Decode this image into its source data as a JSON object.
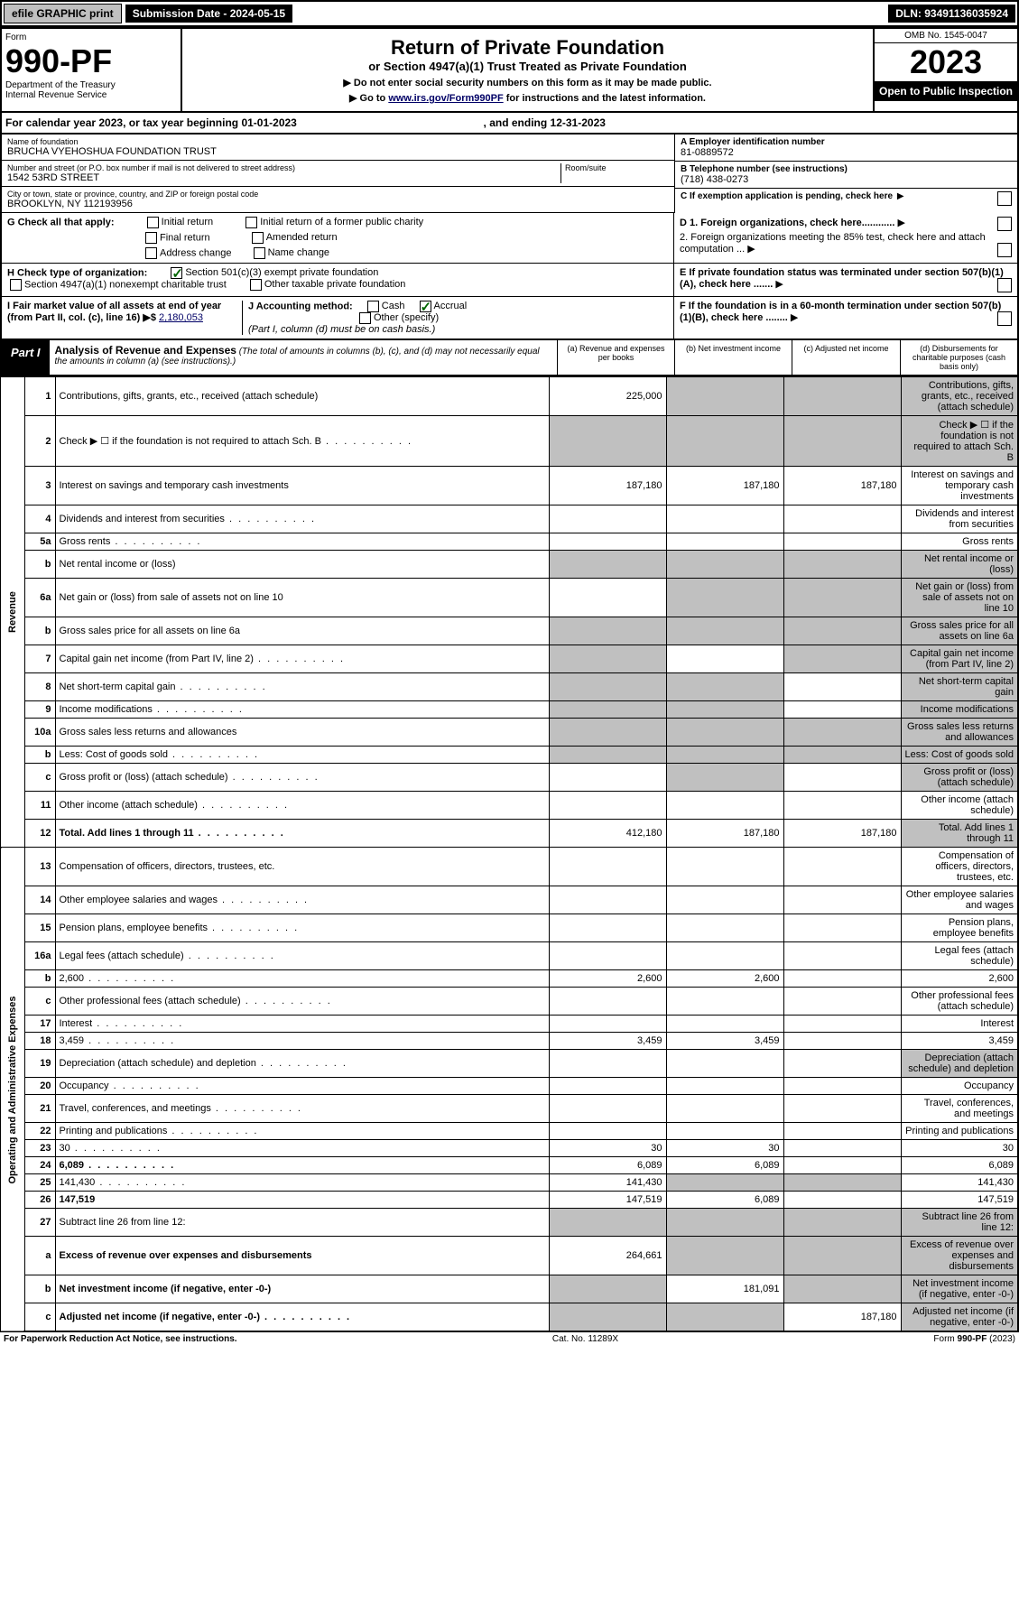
{
  "topbar": {
    "efile": "efile GRAPHIC print",
    "subdate_lbl": "Submission Date - 2024-05-15",
    "dln": "DLN: 93491136035924"
  },
  "header": {
    "form_lbl": "Form",
    "form_no": "990-PF",
    "dept1": "Department of the Treasury",
    "dept2": "Internal Revenue Service",
    "title": "Return of Private Foundation",
    "subtitle": "or Section 4947(a)(1) Trust Treated as Private Foundation",
    "instr1": "▶ Do not enter social security numbers on this form as it may be made public.",
    "instr2_pre": "▶ Go to ",
    "instr2_link": "www.irs.gov/Form990PF",
    "instr2_post": " for instructions and the latest information.",
    "omb": "OMB No. 1545-0047",
    "year": "2023",
    "open": "Open to Public Inspection"
  },
  "cal": {
    "text_pre": "For calendar year 2023, or tax year beginning ",
    "begin": "01-01-2023",
    "text_mid": " , and ending ",
    "end": "12-31-2023"
  },
  "info": {
    "name_lbl": "Name of foundation",
    "name": "BRUCHA VYEHOSHUA FOUNDATION TRUST",
    "addr_lbl": "Number and street (or P.O. box number if mail is not delivered to street address)",
    "addr": "1542 53RD STREET",
    "room_lbl": "Room/suite",
    "city_lbl": "City or town, state or province, country, and ZIP or foreign postal code",
    "city": "BROOKLYN, NY  112193956",
    "a_lbl": "A Employer identification number",
    "a_val": "81-0889572",
    "b_lbl": "B Telephone number (see instructions)",
    "b_val": "(718) 438-0273",
    "c_lbl": "C If exemption application is pending, check here"
  },
  "checks": {
    "g_lbl": "G Check all that apply:",
    "g1": "Initial return",
    "g2": "Initial return of a former public charity",
    "g3": "Final return",
    "g4": "Amended return",
    "g5": "Address change",
    "g6": "Name change",
    "h_lbl": "H Check type of organization:",
    "h1": "Section 501(c)(3) exempt private foundation",
    "h2": "Section 4947(a)(1) nonexempt charitable trust",
    "h3": "Other taxable private foundation",
    "i_lbl": "I Fair market value of all assets at end of year (from Part II, col. (c), line 16) ▶$",
    "i_val": "2,180,053",
    "j_lbl": "J Accounting method:",
    "j1": "Cash",
    "j2": "Accrual",
    "j3": "Other (specify)",
    "j_note": "(Part I, column (d) must be on cash basis.)",
    "d1": "D 1. Foreign organizations, check here............",
    "d2": "2. Foreign organizations meeting the 85% test, check here and attach computation ...",
    "e": "E  If private foundation status was terminated under section 507(b)(1)(A), check here .......",
    "f": "F  If the foundation is in a 60-month termination under section 507(b)(1)(B), check here ........"
  },
  "part1": {
    "lbl": "Part I",
    "title": "Analysis of Revenue and Expenses",
    "note": "(The total of amounts in columns (b), (c), and (d) may not necessarily equal the amounts in column (a) (see instructions).)",
    "cola": "(a)   Revenue and expenses per books",
    "colb": "(b)   Net investment income",
    "colc": "(c)   Adjusted net income",
    "cold": "(d)   Disbursements for charitable purposes (cash basis only)"
  },
  "side": {
    "revenue": "Revenue",
    "expenses": "Operating and Administrative Expenses"
  },
  "rows": [
    {
      "n": "1",
      "d": "Contributions, gifts, grants, etc., received (attach schedule)",
      "a": "225,000",
      "shade_bcd": true
    },
    {
      "n": "2",
      "d": "Check ▶ ☐ if the foundation is not required to attach Sch. B",
      "dots": true,
      "shade_a": true,
      "shade_bcd": true
    },
    {
      "n": "3",
      "d": "Interest on savings and temporary cash investments",
      "a": "187,180",
      "b": "187,180",
      "c": "187,180"
    },
    {
      "n": "4",
      "d": "Dividends and interest from securities",
      "dots": true
    },
    {
      "n": "5a",
      "d": "Gross rents",
      "dots": true
    },
    {
      "n": "b",
      "d": "Net rental income or (loss)",
      "shade_a": true,
      "shade_bcd": true
    },
    {
      "n": "6a",
      "d": "Net gain or (loss) from sale of assets not on line 10",
      "shade_bcd": true
    },
    {
      "n": "b",
      "d": "Gross sales price for all assets on line 6a",
      "shade_a": true,
      "shade_bcd": true
    },
    {
      "n": "7",
      "d": "Capital gain net income (from Part IV, line 2)",
      "dots": true,
      "shade_a": true,
      "shade_cd": true
    },
    {
      "n": "8",
      "d": "Net short-term capital gain",
      "dots": true,
      "shade_a": true,
      "shade_b": true,
      "shade_d": true
    },
    {
      "n": "9",
      "d": "Income modifications",
      "dots": true,
      "shade_a": true,
      "shade_b": true,
      "shade_d": true
    },
    {
      "n": "10a",
      "d": "Gross sales less returns and allowances",
      "shade_a": true,
      "shade_bcd": true
    },
    {
      "n": "b",
      "d": "Less: Cost of goods sold",
      "dots": true,
      "shade_a": true,
      "shade_bcd": true
    },
    {
      "n": "c",
      "d": "Gross profit or (loss) (attach schedule)",
      "dots": true,
      "shade_b": true,
      "shade_d": true
    },
    {
      "n": "11",
      "d": "Other income (attach schedule)",
      "dots": true
    },
    {
      "n": "12",
      "d": "Total. Add lines 1 through 11",
      "dots": true,
      "bold": true,
      "a": "412,180",
      "b": "187,180",
      "c": "187,180",
      "shade_d": true
    },
    {
      "n": "13",
      "d": "Compensation of officers, directors, trustees, etc."
    },
    {
      "n": "14",
      "d": "Other employee salaries and wages",
      "dots": true
    },
    {
      "n": "15",
      "d": "Pension plans, employee benefits",
      "dots": true
    },
    {
      "n": "16a",
      "d": "Legal fees (attach schedule)",
      "dots": true
    },
    {
      "n": "b",
      "d": "2,600",
      "dots": true,
      "a": "2,600",
      "b": "2,600"
    },
    {
      "n": "c",
      "d": "Other professional fees (attach schedule)",
      "dots": true
    },
    {
      "n": "17",
      "d": "Interest",
      "dots": true
    },
    {
      "n": "18",
      "d": "3,459",
      "dots": true,
      "a": "3,459",
      "b": "3,459"
    },
    {
      "n": "19",
      "d": "Depreciation (attach schedule) and depletion",
      "dots": true,
      "shade_d": true
    },
    {
      "n": "20",
      "d": "Occupancy",
      "dots": true
    },
    {
      "n": "21",
      "d": "Travel, conferences, and meetings",
      "dots": true
    },
    {
      "n": "22",
      "d": "Printing and publications",
      "dots": true
    },
    {
      "n": "23",
      "d": "30",
      "dots": true,
      "a": "30",
      "b": "30"
    },
    {
      "n": "24",
      "d": "6,089",
      "dots": true,
      "bold": true,
      "a": "6,089",
      "b": "6,089"
    },
    {
      "n": "25",
      "d": "141,430",
      "dots": true,
      "a": "141,430",
      "shade_bc": true
    },
    {
      "n": "26",
      "d": "147,519",
      "bold": true,
      "a": "147,519",
      "b": "6,089"
    },
    {
      "n": "27",
      "d": "Subtract line 26 from line 12:",
      "shade_a": true,
      "shade_bcd": true
    },
    {
      "n": "a",
      "d": "Excess of revenue over expenses and disbursements",
      "bold": true,
      "a": "264,661",
      "shade_bcd": true
    },
    {
      "n": "b",
      "d": "Net investment income (if negative, enter -0-)",
      "bold": true,
      "shade_a": true,
      "b": "181,091",
      "shade_cd": true
    },
    {
      "n": "c",
      "d": "Adjusted net income (if negative, enter -0-)",
      "dots": true,
      "bold": true,
      "shade_a": true,
      "shade_b": true,
      "c": "187,180",
      "shade_d": true
    }
  ],
  "footer": {
    "left": "For Paperwork Reduction Act Notice, see instructions.",
    "mid": "Cat. No. 11289X",
    "right": "Form 990-PF (2023)"
  },
  "colors": {
    "shade": "#c0c0c0",
    "link": "#000066",
    "check": "#006600"
  }
}
